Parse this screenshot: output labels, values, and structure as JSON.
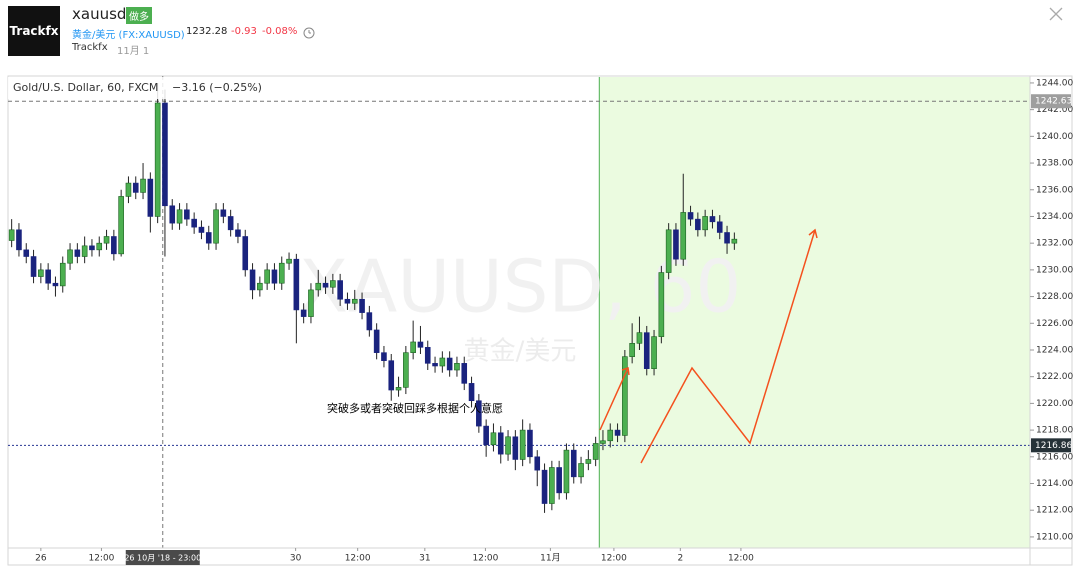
{
  "header": {
    "logo": "Trackfx",
    "symbol": "xauusd",
    "badge": "做多",
    "instrument": "黄金/美元 (FX:XAUUSD)",
    "price": "1232.28",
    "change": "-0.93",
    "change_pct": "-0.08%",
    "author": "Trackfx",
    "date": "11月 1"
  },
  "chart_data": {
    "type": "candlestick",
    "title": "Gold/U.S. Dollar, 60, FXCM",
    "subtitle": "−3.16 (−0.25%)",
    "watermark": "XAUUSD, 60",
    "watermark_sub": "黄金/美元",
    "annotation": "突破多或者突破回踩多根据个人意愿",
    "up_color": "#4caf50",
    "down_color": "#1a237e",
    "zone_color": "#ebfbe0",
    "open": [
      1232.2,
      1233.0,
      1231.5,
      1231.0,
      1229.5,
      1230.0,
      1229.0,
      1228.8,
      1230.5,
      1231.5,
      1231.0,
      1231.8,
      1231.5,
      1232.0,
      1232.5,
      1231.2,
      1235.5,
      1236.5,
      1235.8,
      1236.8,
      1234.0,
      1242.5,
      1234.8,
      1233.5,
      1234.5,
      1233.8,
      1233.2,
      1232.8,
      1232.0,
      1234.5,
      1234.0,
      1233.0,
      1232.5,
      1230.0,
      1228.5,
      1229.0,
      1230.0,
      1229.0,
      1230.5,
      1230.8,
      1227.0,
      1226.5,
      1228.5,
      1229.0,
      1228.7,
      1229.2,
      1227.8,
      1227.5,
      1227.8,
      1226.8,
      1225.5,
      1223.8,
      1223.2,
      1221.0,
      1221.2,
      1223.8,
      1224.6,
      1224.2,
      1223.0,
      1222.8,
      1223.4,
      1222.5,
      1223.0,
      1221.5,
      1220.2,
      1218.3,
      1216.9,
      1217.8,
      1216.2,
      1217.5,
      1215.8,
      1218.0,
      1216.0,
      1215.0,
      1212.5,
      1215.2,
      1213.3,
      1216.5,
      1214.5,
      1215.5,
      1215.8,
      1217.0,
      1217.2,
      1218.0,
      1217.6,
      1223.5,
      1224.5,
      1225.3,
      1222.6,
      1225.0,
      1229.8,
      1233.0,
      1230.8,
      1234.3,
      1233.8,
      1233.0,
      1234.0,
      1233.6,
      1232.8,
      1232.0
    ],
    "high": [
      1233.8,
      1233.5,
      1232.0,
      1231.5,
      1230.5,
      1230.5,
      1229.5,
      1231.0,
      1232.0,
      1232.0,
      1232.5,
      1232.3,
      1232.5,
      1233.0,
      1233.0,
      1236.0,
      1237.0,
      1237.0,
      1238.0,
      1237.3,
      1244.0,
      1243.5,
      1235.3,
      1235.0,
      1235.0,
      1234.3,
      1233.7,
      1233.3,
      1235.0,
      1235.0,
      1234.5,
      1233.5,
      1233.0,
      1230.5,
      1229.5,
      1230.5,
      1230.5,
      1231.0,
      1231.3,
      1231.2,
      1227.5,
      1229.0,
      1230.0,
      1229.5,
      1229.7,
      1229.7,
      1228.3,
      1228.5,
      1228.3,
      1227.3,
      1226.0,
      1224.3,
      1223.7,
      1222.0,
      1224.3,
      1226.2,
      1225.8,
      1224.7,
      1223.5,
      1223.9,
      1223.9,
      1223.5,
      1223.5,
      1222.0,
      1220.7,
      1218.8,
      1218.5,
      1218.3,
      1218.0,
      1218.0,
      1218.8,
      1218.5,
      1216.5,
      1215.5,
      1215.7,
      1215.7,
      1217.0,
      1217.0,
      1216.0,
      1216.5,
      1217.5,
      1218.0,
      1218.5,
      1218.5,
      1224.0,
      1226.0,
      1226.5,
      1225.8,
      1225.5,
      1230.3,
      1233.5,
      1233.5,
      1237.2,
      1234.8,
      1234.3,
      1234.5,
      1234.5,
      1234.1,
      1233.3,
      1232.8
    ],
    "low": [
      1231.7,
      1231.0,
      1230.5,
      1229.0,
      1229.0,
      1228.5,
      1228.0,
      1228.3,
      1230.0,
      1230.5,
      1230.5,
      1231.0,
      1231.0,
      1231.5,
      1230.7,
      1231.0,
      1235.0,
      1235.3,
      1235.3,
      1232.8,
      1233.5,
      1231.0,
      1233.0,
      1233.0,
      1233.3,
      1232.7,
      1232.3,
      1231.5,
      1231.5,
      1233.5,
      1232.5,
      1232.0,
      1229.5,
      1227.8,
      1228.0,
      1228.5,
      1228.5,
      1228.5,
      1230.0,
      1224.5,
      1226.0,
      1226.0,
      1228.0,
      1228.2,
      1228.2,
      1227.3,
      1227.0,
      1227.0,
      1226.3,
      1225.0,
      1223.3,
      1222.7,
      1220.2,
      1220.5,
      1220.7,
      1223.3,
      1223.7,
      1222.5,
      1222.3,
      1222.3,
      1222.0,
      1222.0,
      1221.0,
      1219.7,
      1217.8,
      1216.0,
      1216.4,
      1215.5,
      1215.7,
      1215.0,
      1215.3,
      1215.5,
      1213.8,
      1211.8,
      1212.0,
      1212.8,
      1212.8,
      1214.0,
      1214.0,
      1215.0,
      1215.3,
      1216.5,
      1216.7,
      1217.1,
      1217.1,
      1223.0,
      1224.0,
      1222.1,
      1222.1,
      1224.5,
      1229.3,
      1230.3,
      1230.3,
      1233.3,
      1232.5,
      1232.5,
      1233.1,
      1232.3,
      1231.2,
      1231.5
    ],
    "close": [
      1233.0,
      1231.5,
      1231.0,
      1229.5,
      1230.0,
      1229.0,
      1228.8,
      1230.5,
      1231.5,
      1231.0,
      1231.8,
      1231.5,
      1232.0,
      1232.5,
      1231.2,
      1235.5,
      1236.5,
      1235.8,
      1236.8,
      1234.0,
      1242.5,
      1234.8,
      1233.5,
      1234.5,
      1233.8,
      1233.2,
      1232.8,
      1232.0,
      1234.5,
      1234.0,
      1233.0,
      1232.5,
      1230.0,
      1228.5,
      1229.0,
      1230.0,
      1229.0,
      1230.5,
      1230.8,
      1227.0,
      1226.5,
      1228.5,
      1229.0,
      1228.7,
      1229.2,
      1227.8,
      1227.5,
      1227.8,
      1226.8,
      1225.5,
      1223.8,
      1223.2,
      1221.0,
      1221.2,
      1223.8,
      1224.6,
      1224.2,
      1223.0,
      1222.8,
      1223.4,
      1222.5,
      1223.0,
      1221.5,
      1220.2,
      1218.3,
      1216.9,
      1217.8,
      1216.2,
      1217.5,
      1215.8,
      1218.0,
      1216.0,
      1215.0,
      1212.5,
      1215.2,
      1213.3,
      1216.5,
      1214.5,
      1215.5,
      1215.8,
      1217.0,
      1217.2,
      1218.0,
      1217.6,
      1223.5,
      1224.5,
      1225.3,
      1222.6,
      1225.0,
      1229.8,
      1233.0,
      1230.8,
      1234.3,
      1233.8,
      1233.0,
      1234.0,
      1233.6,
      1232.8,
      1232.0,
      1232.3
    ],
    "xlim": [
      -0.5,
      139.5
    ],
    "xticks": [
      {
        "value": 4,
        "label": "26"
      },
      {
        "value": 12.3,
        "label": "12:00"
      },
      {
        "value": 38.9,
        "label": "30"
      },
      {
        "value": 47.4,
        "label": "12:00"
      },
      {
        "value": 56.6,
        "label": "31"
      },
      {
        "value": 64.9,
        "label": "12:00"
      },
      {
        "value": 73.8,
        "label": "11月"
      },
      {
        "value": 82.5,
        "label": "12:00"
      },
      {
        "value": 91.6,
        "label": "2"
      },
      {
        "value": 99.9,
        "label": "12:00"
      }
    ],
    "zone_start": 80.5,
    "crosshair": {
      "value": 20.7,
      "label": "26 10月 '18 - 23:00"
    },
    "crosshair_price": 1242.63,
    "level": 1216.86,
    "ylim": [
      1209.17,
      1244.52
    ],
    "yticks": [
      {
        "value": 1210,
        "label": "1210.00"
      },
      {
        "value": 1212,
        "label": "1212.00"
      },
      {
        "value": 1214,
        "label": "1214.00"
      },
      {
        "value": 1216,
        "label": "1216.00"
      },
      {
        "value": 1218,
        "label": "1218.00"
      },
      {
        "value": 1220,
        "label": "1220.00"
      },
      {
        "value": 1222,
        "label": "1222.00"
      },
      {
        "value": 1224,
        "label": "1224.00"
      },
      {
        "value": 1226,
        "label": "1226.00"
      },
      {
        "value": 1228,
        "label": "1228.00"
      },
      {
        "value": 1230,
        "label": "1230.00"
      },
      {
        "value": 1232,
        "label": "1232.00"
      },
      {
        "value": 1234,
        "label": "1234.00"
      },
      {
        "value": 1236,
        "label": "1236.00"
      },
      {
        "value": 1238,
        "label": "1238.00"
      },
      {
        "value": 1240,
        "label": "1240.00"
      },
      {
        "value": 1242,
        "label": "1242.00"
      },
      {
        "value": 1244,
        "label": "1244.00"
      }
    ],
    "grid": false
  }
}
